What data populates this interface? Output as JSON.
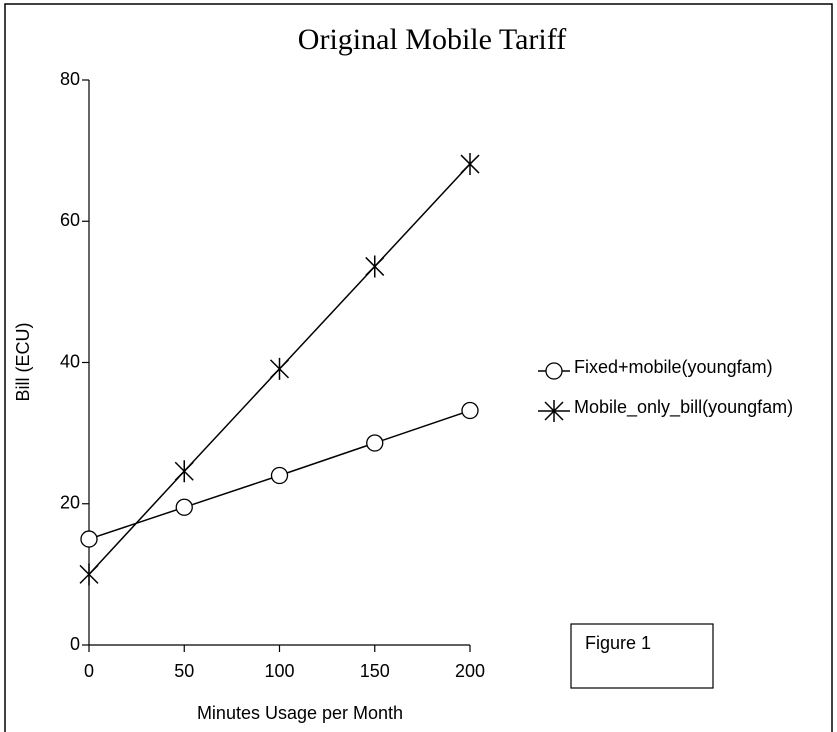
{
  "chart_data": {
    "type": "line",
    "title": "Original  Mobile Tariff",
    "x_label": "Minutes Usage per Month",
    "y_label": "Bill (ECU)",
    "annotation": "Figure 1",
    "x": [
      0,
      50,
      100,
      150,
      200
    ],
    "series": [
      {
        "name": "Fixed+mobile(youngfam)",
        "color": "#000000",
        "marker": "circle",
        "values": [
          15,
          19.5,
          24,
          28.6,
          33.2
        ]
      },
      {
        "name": "Mobile_only_bill(youngfam)",
        "color": "#000000",
        "marker": "star",
        "values": [
          10,
          24.6,
          39.1,
          53.6,
          68.1
        ]
      }
    ],
    "xlim": [
      0,
      200
    ],
    "xticks": [
      0,
      50,
      100,
      150,
      200
    ],
    "ylim": [
      0,
      80
    ],
    "yticks": [
      0,
      20,
      40,
      60,
      80
    ]
  }
}
